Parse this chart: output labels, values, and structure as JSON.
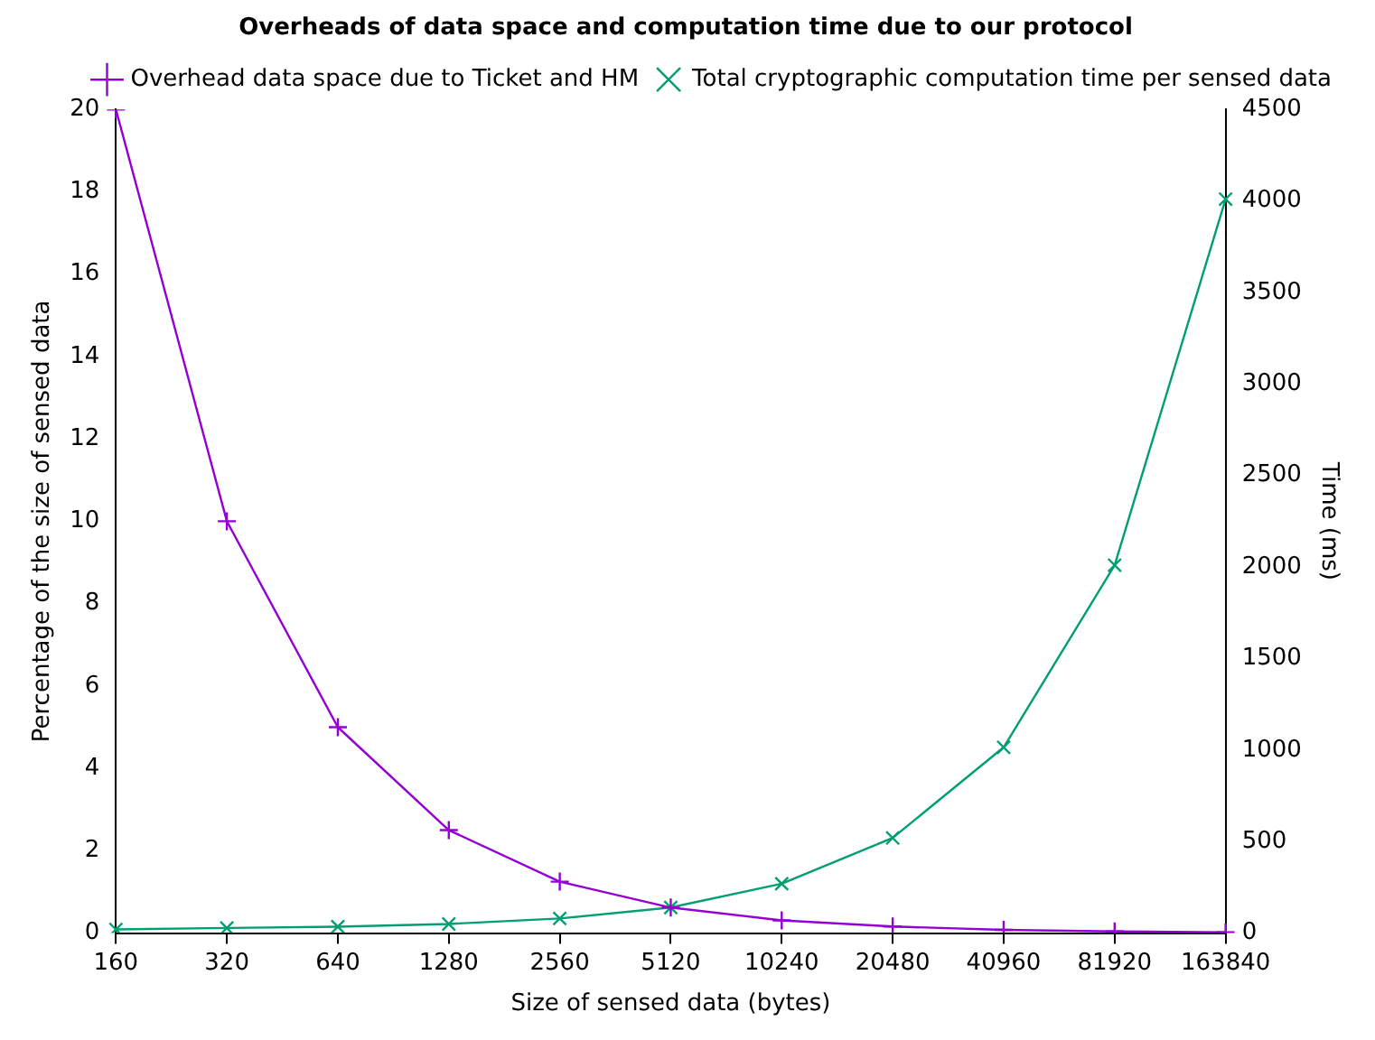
{
  "chart_data": {
    "type": "line",
    "title": "Overheads of data space and computation time due to our protocol",
    "xlabel": "Size of sensed data (bytes)",
    "ylabel": "Percentage of the size of sensed data",
    "y2label": "Time (ms)",
    "categories": [
      "160",
      "320",
      "640",
      "1280",
      "2560",
      "5120",
      "10240",
      "20480",
      "40960",
      "81920",
      "163840"
    ],
    "series": [
      {
        "name": "Overhead data space due to Ticket and HM",
        "color": "#9400d3",
        "marker": "cross",
        "values": [
          20,
          10,
          5,
          2.5,
          1.25,
          0.62,
          0.31,
          0.16,
          0.08,
          0.04,
          0.02
        ]
      },
      {
        "name": "Total cryptographic computation time per sensed data",
        "color": "#009e73",
        "marker": "x",
        "axis": "y2",
        "values": [
          20,
          28,
          35,
          50,
          80,
          140,
          270,
          520,
          1015,
          2010,
          4010
        ]
      }
    ],
    "ylim": [
      0,
      20
    ],
    "yticks": [
      0,
      2,
      4,
      6,
      8,
      10,
      12,
      14,
      16,
      18,
      20
    ],
    "y2lim": [
      0,
      4500
    ],
    "y2ticks": [
      0,
      500,
      1000,
      1500,
      2000,
      2500,
      3000,
      3500,
      4000,
      4500
    ],
    "grid": false,
    "legend": "top right",
    "line_style": "solid"
  }
}
